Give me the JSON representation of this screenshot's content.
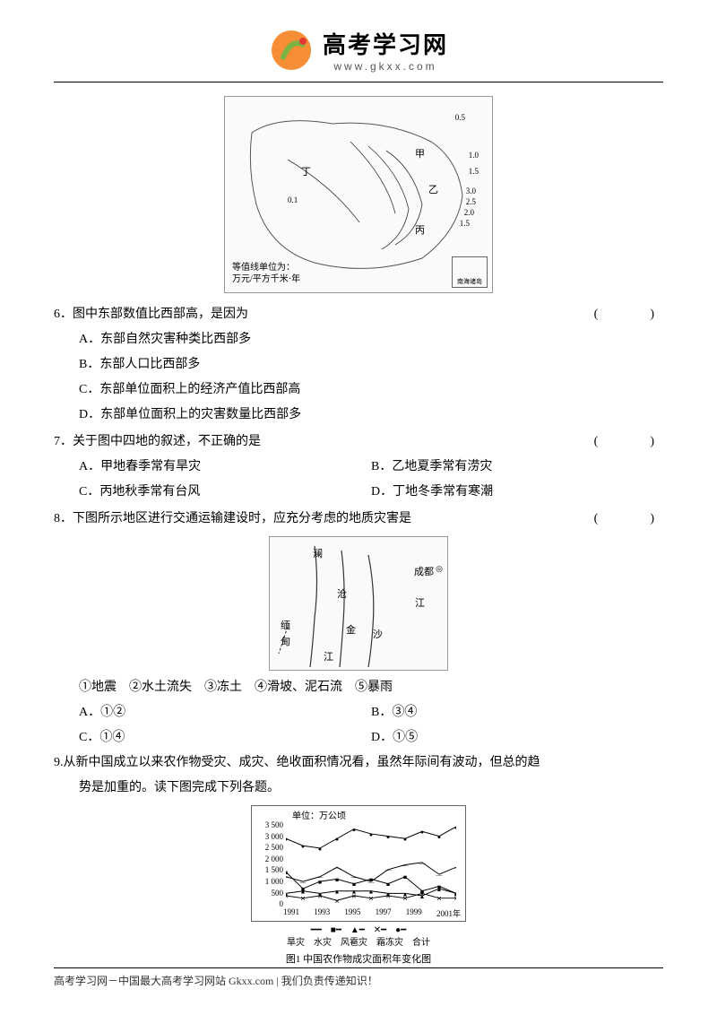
{
  "header": {
    "title": "高考学习网",
    "url": "www.gkxx.com",
    "logo_colors": {
      "orange": "#f58220",
      "green": "#7cb342",
      "red": "#e53935"
    }
  },
  "map1": {
    "legend_line1": "等值线单位为：",
    "legend_line2": "万元/平方千米·年",
    "inset_label": "南海诸岛",
    "contours": [
      "0.1",
      "0.5",
      "1.0",
      "1.5",
      "2.0",
      "2.5",
      "3.0"
    ],
    "markers": [
      "甲",
      "乙",
      "丙",
      "丁"
    ]
  },
  "q6": {
    "number": "6．",
    "text": "图中东部数值比西部高，是因为",
    "bracket": "(　　)",
    "options": {
      "A": "A．东部自然灾害种类比西部多",
      "B": "B．东部人口比西部多",
      "C": "C．东部单位面积上的经济产值比西部高",
      "D": "D．东部单位面积上的灾害数量比西部多"
    }
  },
  "q7": {
    "number": "7．",
    "text": "关于图中四地的叙述，不正确的是",
    "bracket": "(　　)",
    "options": {
      "A": "A．甲地春季常有旱灾",
      "B": "B．乙地夏季常有涝灾",
      "C": "C．丙地秋季常有台风",
      "D": "D．丁地冬季常有寒潮"
    }
  },
  "q8": {
    "number": "8．",
    "text": "下图所示地区进行交通运输建设时，应充分考虑的地质灾害是",
    "bracket": "(　　)",
    "map_labels": {
      "chengdu": "成都",
      "jiang": "江",
      "lan": "澜",
      "cang": "沧",
      "jin": "金",
      "sha": "沙",
      "jiang2": "江",
      "mian": "缅",
      "dian": "甸"
    },
    "items": "①地震　②水土流失　③冻土　④滑坡、泥石流　⑤暴雨",
    "options": {
      "A": "A．①②",
      "B": "B．③④",
      "C": "C．①④",
      "D": "D．①⑤"
    }
  },
  "q9": {
    "number": "9.",
    "text1": "从新中国成立以来农作物受灾、成灾、绝收面积情况看，虽然年际间有波动，但总的趋",
    "text2": "势是加重的。读下图完成下列各题。"
  },
  "chart": {
    "unit": "单位：万公顷",
    "yticks": [
      "3 500",
      "3 000",
      "2 500",
      "2 000",
      "1 500",
      "1 000",
      "500",
      "0"
    ],
    "xticks": [
      "1991",
      "1993",
      "1995",
      "1997",
      "1999",
      "2001年"
    ],
    "legend_symbols": "━━　■━　▲━　✕━　●━",
    "legend_text": "旱灾　水灾　风雹灾　霜冻灾　合计",
    "caption": "图1 中国农作物成灾面积年变化图",
    "series": {
      "total": [
        2700,
        2400,
        2300,
        2700,
        3100,
        2900,
        2800,
        2700,
        3000,
        2800,
        3200
      ],
      "drought": [
        1100,
        900,
        1100,
        1500,
        1100,
        900,
        1400,
        1600,
        1700,
        1200,
        1500
      ],
      "flood": [
        1300,
        600,
        900,
        1000,
        800,
        1000,
        800,
        1100,
        500,
        700,
        400
      ],
      "hail": [
        400,
        500,
        400,
        500,
        500,
        500,
        400,
        400,
        300,
        600,
        400
      ],
      "frost": [
        300,
        200,
        300,
        100,
        300,
        200,
        300,
        200,
        400,
        200,
        200
      ]
    },
    "colors": {
      "line": "#000000",
      "bg": "#ffffff"
    }
  },
  "footer": {
    "text": "高考学习网－中国最大高考学习网站 Gkxx.com | 我们负责传递知识！"
  }
}
